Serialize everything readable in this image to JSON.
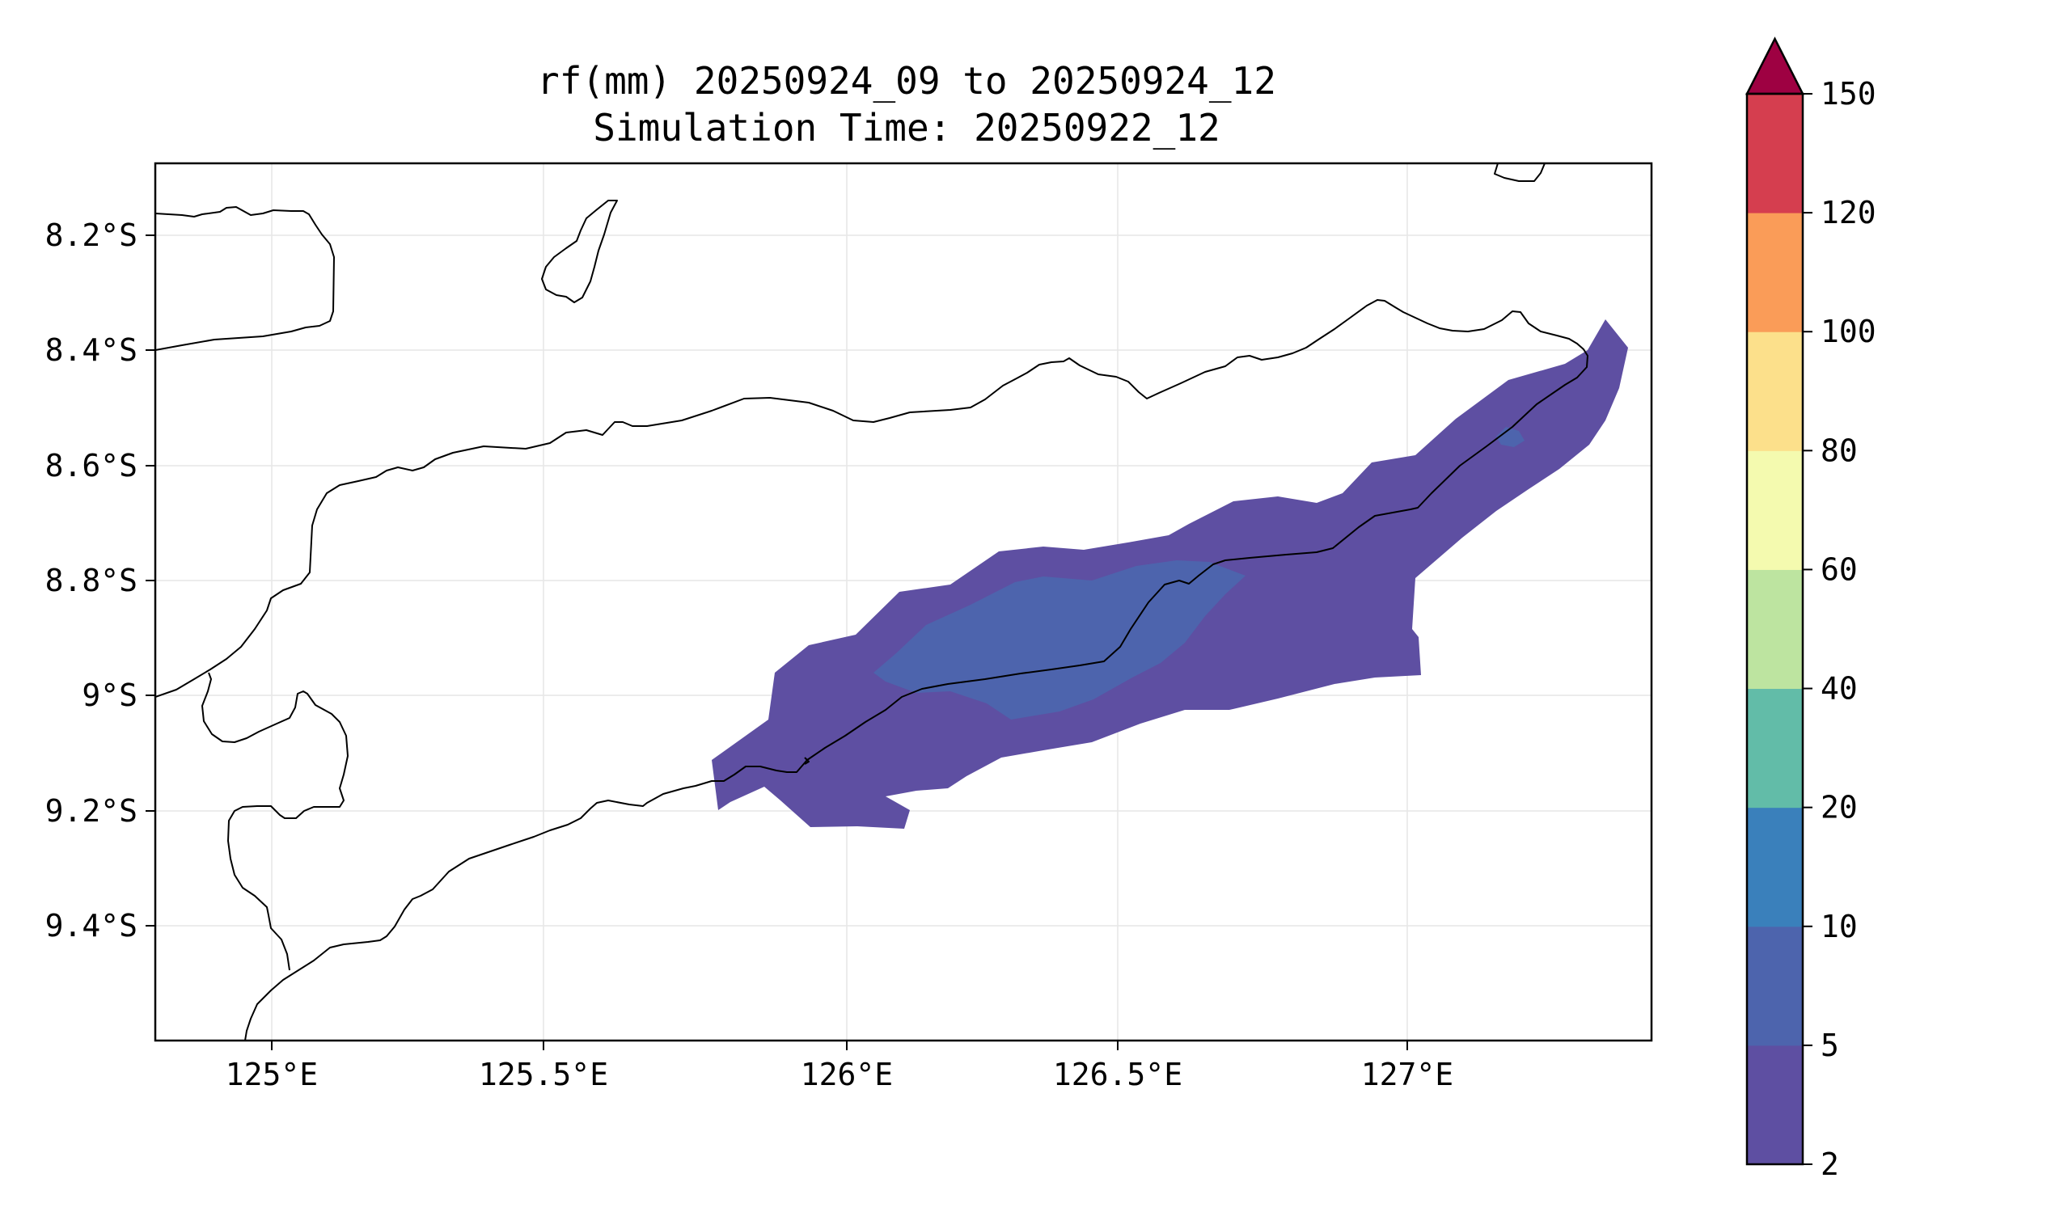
{
  "title": {
    "line1": "rf(mm) 20250924_09 to 20250924_12",
    "line2": "Simulation Time: 20250922_12"
  },
  "map": {
    "lon_range": [
      124.83,
      127.42
    ],
    "lat_range": [
      -9.6,
      -8.08
    ],
    "lon_ticks": [
      {
        "value": 125.0,
        "label": "125°E"
      },
      {
        "value": 125.5,
        "label": "125.5°E"
      },
      {
        "value": 126.0,
        "label": "126°E"
      },
      {
        "value": 126.5,
        "label": "126.5°E"
      },
      {
        "value": 127.0,
        "label": "127°E"
      }
    ],
    "lat_ticks": [
      {
        "value": -8.2,
        "label": "8.2°S"
      },
      {
        "value": -8.4,
        "label": "8.4°S"
      },
      {
        "value": -8.6,
        "label": "8.6°S"
      },
      {
        "value": -8.8,
        "label": "8.8°S"
      },
      {
        "value": -9.0,
        "label": "9°S"
      },
      {
        "value": -9.2,
        "label": "9.2°S"
      },
      {
        "value": -9.4,
        "label": "9.4°S"
      }
    ],
    "gridlines": true
  },
  "colorbar": {
    "extend": "max",
    "extend_color": "#9e0142",
    "levels": [
      {
        "label": "2"
      },
      {
        "label": "5"
      },
      {
        "label": "10"
      },
      {
        "label": "20"
      },
      {
        "label": "40"
      },
      {
        "label": "60"
      },
      {
        "label": "80"
      },
      {
        "label": "100"
      },
      {
        "label": "120"
      },
      {
        "label": "150"
      }
    ],
    "colors": [
      "#5e4fa2",
      "#4d64ad",
      "#3a80bb",
      "#62bca8",
      "#bde4a0",
      "#f4faaf",
      "#fce08b",
      "#fa9c58",
      "#d53e4f"
    ]
  },
  "rainfall": {
    "band_2_5": {
      "color": "#5e4fa2"
    },
    "band_5_10": {
      "color": "#4d64ad"
    }
  }
}
